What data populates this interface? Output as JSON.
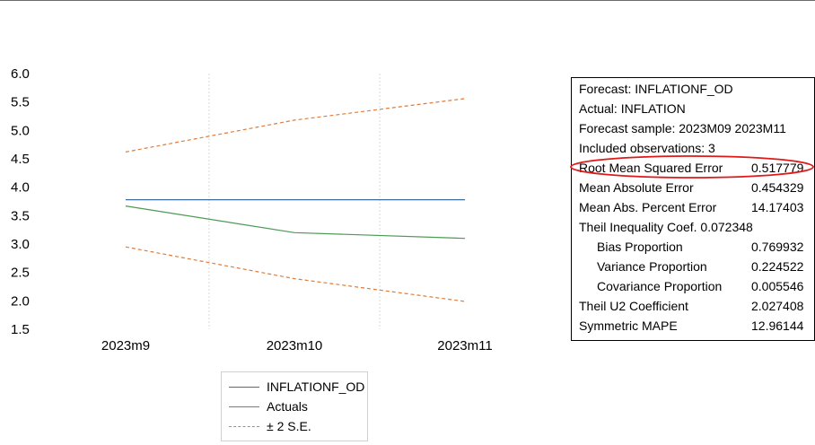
{
  "chart_data": {
    "type": "line",
    "categories": [
      "2023m9",
      "2023m10",
      "2023m11"
    ],
    "ylim": [
      1.5,
      6.0
    ],
    "yticks": [
      "6.0",
      "5.5",
      "5.0",
      "4.5",
      "4.0",
      "3.5",
      "3.0",
      "2.5",
      "2.0",
      "1.5"
    ],
    "grid": "vertical dotted",
    "series": [
      {
        "name": "INFLATIONF_OD",
        "values": [
          3.78,
          3.78,
          3.78
        ],
        "color": "#3f6e9a",
        "dash": "solid"
      },
      {
        "name": "Actuals",
        "values": [
          3.67,
          3.2,
          3.1
        ],
        "color": "#4c9a55",
        "dash": "solid"
      },
      {
        "name": "± 2 S.E.",
        "values": [
          4.62,
          5.18,
          5.56
        ],
        "color": "#e07b39",
        "dash": "dashed"
      },
      {
        "name": "",
        "values": [
          2.95,
          2.39,
          1.99
        ],
        "color": "#e07b39",
        "dash": "dashed"
      }
    ],
    "legend_position": "bottom"
  },
  "stats": {
    "rows": [
      {
        "label": "Forecast: INFLATIONF_OD",
        "value": ""
      },
      {
        "label": "Actual: INFLATION",
        "value": ""
      },
      {
        "label": "Forecast sample: 2023M09 2023M11",
        "value": ""
      },
      {
        "label": "Included observations: 3",
        "value": ""
      },
      {
        "label": "Root Mean Squared Error",
        "value": "0.517779",
        "highlighted": true
      },
      {
        "label": "Mean Absolute Error",
        "value": "0.454329"
      },
      {
        "label": "Mean Abs. Percent Error",
        "value": "14.17403"
      },
      {
        "label": "Theil Inequality Coef.  0.072348",
        "value": ""
      },
      {
        "label": "Bias Proportion",
        "value": "0.769932",
        "indent": true
      },
      {
        "label": "Variance Proportion",
        "value": "0.224522",
        "indent": true
      },
      {
        "label": "Covariance Proportion",
        "value": "0.005546",
        "indent": true
      },
      {
        "label": "Theil U2 Coefficient",
        "value": "2.027408"
      },
      {
        "label": "Symmetric MAPE",
        "value": "12.96144"
      }
    ]
  },
  "colors": {
    "highlight": "#e0191b"
  }
}
